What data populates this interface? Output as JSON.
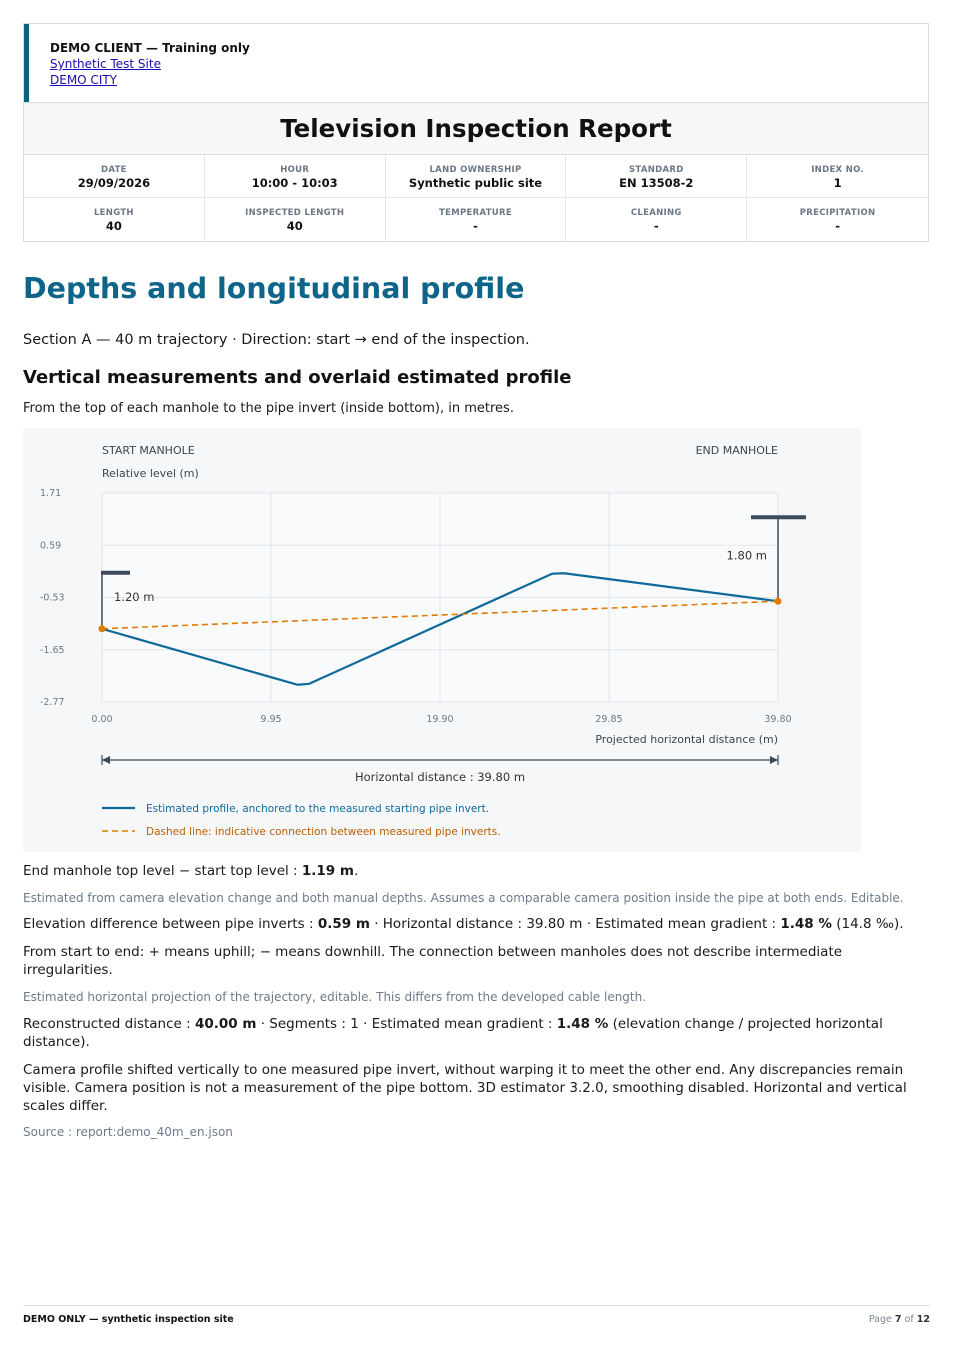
{
  "header": {
    "client": "DEMO CLIENT — Training only",
    "site_link": "Synthetic Test Site",
    "city_link": "DEMO CITY",
    "title": "Television Inspection Report",
    "meta": [
      {
        "label": "DATE",
        "value": "29/09/2026"
      },
      {
        "label": "HOUR",
        "value": "10:00 - 10:03"
      },
      {
        "label": "LAND OWNERSHIP",
        "value": "Synthetic public site"
      },
      {
        "label": "STANDARD",
        "value": "EN 13508-2"
      },
      {
        "label": "INDEX NO.",
        "value": "1"
      },
      {
        "label": "LENGTH",
        "value": "40"
      },
      {
        "label": "INSPECTED LENGTH",
        "value": "40"
      },
      {
        "label": "TEMPERATURE",
        "value": "-"
      },
      {
        "label": "CLEANING",
        "value": "-"
      },
      {
        "label": "PRECIPITATION",
        "value": "-"
      }
    ]
  },
  "section": {
    "title": "Depths and longitudinal profile",
    "intro": "Section A — 40 m trajectory · Direction: start → end of the inspection.",
    "subtitle": "Vertical measurements and overlaid estimated profile",
    "subtitle_desc": "From the top of each manhole to the pipe invert (inside bottom), in metres."
  },
  "chart_data": {
    "type": "line",
    "start_label": "START MANHOLE",
    "end_label": "END MANHOLE",
    "ylabel": "Relative level (m)",
    "xlabel": "Projected horizontal distance (m)",
    "y_ticks": [
      "1.71",
      "0.59",
      "-0.53",
      "-1.65",
      "-2.77"
    ],
    "x_ticks": [
      "0.00",
      "9.95",
      "19.90",
      "29.85",
      "39.80"
    ],
    "xlim": [
      0,
      39.8
    ],
    "ylim": [
      -2.77,
      1.71
    ],
    "start_depth_label": "1.20 m",
    "end_depth_label": "1.80 m",
    "start_manhole_top": 0.0,
    "end_manhole_top": 1.19,
    "distance_label": "Horizontal distance : 39.80 m",
    "series": [
      {
        "name": "Estimated profile, anchored to the measured starting pipe invert.",
        "color": "#0f6a9a",
        "style": "solid",
        "x": [
          0.0,
          11.5,
          12.2,
          26.5,
          27.2,
          39.8
        ],
        "y": [
          -1.2,
          -2.4,
          -2.38,
          -0.02,
          -0.01,
          -0.61
        ]
      },
      {
        "name": "Dashed line: indicative connection between measured pipe inverts.",
        "color": "#e07b00",
        "style": "dashed",
        "x": [
          0.0,
          39.8
        ],
        "y": [
          -1.2,
          -0.61
        ]
      }
    ]
  },
  "notes": {
    "n1_pre": "End manhole top level − start top level : ",
    "n1_val": "1.19 m",
    "n1_post": ".",
    "n2": "Estimated from camera elevation change and both manual depths. Assumes a comparable camera position inside the pipe at both ends. Editable.",
    "n3_a": "Elevation difference between pipe inverts : ",
    "n3_b": "0.59 m",
    "n3_c": " · Horizontal distance : 39.80 m · Estimated mean gradient : ",
    "n3_d": "1.48 %",
    "n3_e": " (14.8 ‰).",
    "n4": "From start to end: + means uphill; − means downhill. The connection between manholes does not describe intermediate irregularities.",
    "n5": "Estimated horizontal projection of the trajectory, editable. This differs from the developed cable length.",
    "n6_a": "Reconstructed distance : ",
    "n6_b": "40.00 m",
    "n6_c": " · Segments : 1 · Estimated mean gradient : ",
    "n6_d": "1.48 %",
    "n6_e": " (elevation change / projected horizontal distance).",
    "n7": "Camera profile shifted vertically to one measured pipe invert, without warping it to meet the other end. Any discrepancies remain visible. Camera position is not a measurement of the pipe bottom. 3D estimator 3.2.0, smoothing disabled. Horizontal and vertical scales differ.",
    "n8": "Source : report:demo_40m_en.json"
  },
  "footer": {
    "left": "DEMO ONLY — synthetic inspection site",
    "page_word": "Page",
    "page_num": "7",
    "page_of": "of",
    "page_total": "12"
  }
}
